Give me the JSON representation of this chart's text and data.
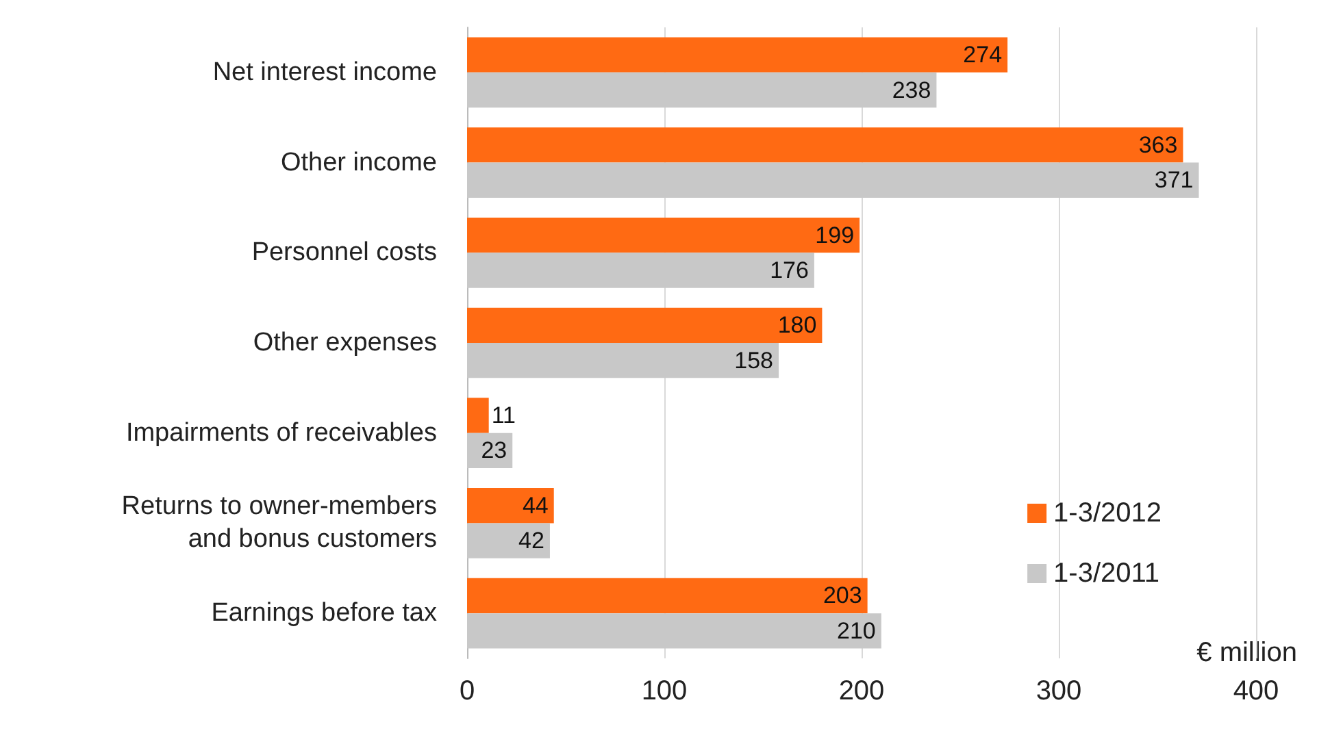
{
  "chart_data": {
    "type": "bar",
    "orientation": "horizontal",
    "categories": [
      "Net interest income",
      "Other income",
      "Personnel costs",
      "Other expenses",
      "Impairments of receivables",
      "Returns to owner-members\nand bonus customers",
      "Earnings before tax"
    ],
    "series": [
      {
        "name": "1-3/2012",
        "color": "#ff6a13",
        "values": [
          274,
          363,
          199,
          180,
          11,
          44,
          203
        ]
      },
      {
        "name": "1-3/2011",
        "color": "#c8c8c8",
        "values": [
          238,
          371,
          176,
          158,
          23,
          42,
          210
        ]
      }
    ],
    "xlim": [
      0,
      400
    ],
    "xticks": [
      0,
      100,
      200,
      300,
      400
    ],
    "xlabel": "€ million",
    "grid": "x",
    "legend": "bottom right",
    "data_labels": true
  }
}
